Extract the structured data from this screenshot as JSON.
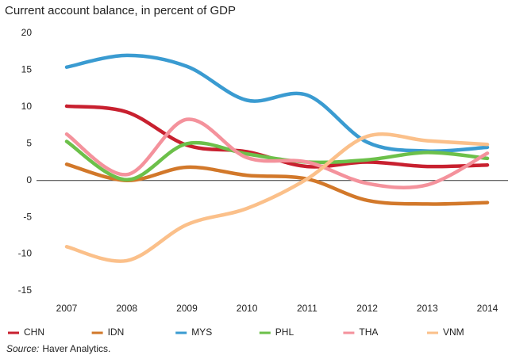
{
  "chart_data": {
    "type": "line",
    "title": "Current account balance, in percent of GDP",
    "categories": [
      "2007",
      "2008",
      "2009",
      "2010",
      "2011",
      "2012",
      "2013",
      "2014"
    ],
    "series": [
      {
        "name": "CHN",
        "color": "#c8202f",
        "values": [
          10.1,
          9.3,
          4.8,
          3.9,
          1.9,
          2.5,
          1.9,
          2.1
        ]
      },
      {
        "name": "IDN",
        "color": "#d2782a",
        "values": [
          2.2,
          0.0,
          1.8,
          0.7,
          0.2,
          -2.7,
          -3.2,
          -3.0
        ]
      },
      {
        "name": "MYS",
        "color": "#3a9bd1",
        "values": [
          15.4,
          17.0,
          15.5,
          10.9,
          11.6,
          5.2,
          4.0,
          4.5
        ]
      },
      {
        "name": "PHL",
        "color": "#6cc04a",
        "values": [
          5.3,
          0.1,
          5.0,
          3.6,
          2.5,
          2.8,
          3.8,
          3.0
        ]
      },
      {
        "name": "THA",
        "color": "#f4929c",
        "values": [
          6.3,
          0.8,
          8.3,
          3.1,
          2.5,
          -0.4,
          -0.6,
          3.7
        ]
      },
      {
        "name": "VNM",
        "color": "#fbc08a",
        "values": [
          -9.0,
          -10.9,
          -6.0,
          -3.8,
          0.2,
          6.0,
          5.4,
          4.9
        ]
      }
    ],
    "ylim": [
      -15,
      20
    ],
    "yticks": [
      20,
      15,
      10,
      5,
      0,
      -5,
      -10,
      -15
    ],
    "source_label": "Source:",
    "source": "Haver Analytics."
  }
}
